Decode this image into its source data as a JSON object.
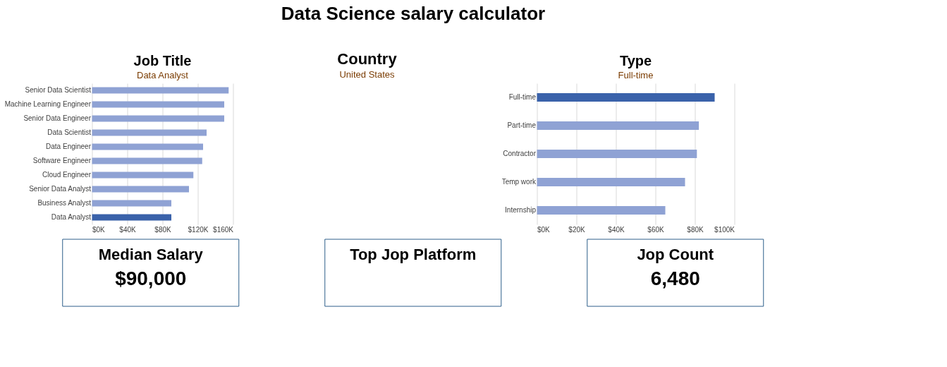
{
  "chart_data": [
    {
      "type": "other",
      "title": "Data Science salary calculator"
    },
    {
      "type": "bar",
      "title": "Job Title",
      "subtitle": "Data Analyst",
      "orientation": "horizontal",
      "grid": "x",
      "categories": [
        "Senior Data Scientist",
        "Machine Learning Engineer",
        "Senior Data Engineer",
        "Data Scientist",
        "Data Engineer",
        "Software Engineer",
        "Cloud Engineer",
        "Senior Data Analyst",
        "Business Analyst",
        "Data Analyst"
      ],
      "values": [
        155000,
        150000,
        150000,
        130000,
        126000,
        125000,
        115000,
        110000,
        90000,
        90000
      ],
      "colors": [
        "#8fa2d4",
        "#8fa2d4",
        "#8fa2d4",
        "#8fa2d4",
        "#8fa2d4",
        "#8fa2d4",
        "#8fa2d4",
        "#8fa2d4",
        "#8fa2d4",
        "#3a62aa"
      ],
      "xlim": [
        0,
        160000
      ],
      "xticks": [
        {
          "value": 0,
          "label": "$0K"
        },
        {
          "value": 40000,
          "label": "$40K"
        },
        {
          "value": 80000,
          "label": "$80K"
        },
        {
          "value": 120000,
          "label": "$120K"
        },
        {
          "value": 160000,
          "label": "$160K"
        }
      ]
    },
    {
      "type": "other",
      "title": "Country",
      "subtitle": "United States"
    },
    {
      "type": "bar",
      "title": "Type",
      "subtitle": "Full-time",
      "orientation": "horizontal",
      "grid": "x",
      "categories": [
        "Full-time",
        "Part-time",
        "Contractor",
        "Temp work",
        "Internship"
      ],
      "values": [
        90000,
        82000,
        81000,
        75000,
        65000
      ],
      "colors": [
        "#3a62aa",
        "#8fa2d4",
        "#8fa2d4",
        "#8fa2d4",
        "#8fa2d4"
      ],
      "xlim": [
        0,
        100000
      ],
      "xticks": [
        {
          "value": 0,
          "label": "$0K"
        },
        {
          "value": 20000,
          "label": "$20K"
        },
        {
          "value": 40000,
          "label": "$40K"
        },
        {
          "value": 60000,
          "label": "$60K"
        },
        {
          "value": 80000,
          "label": "$80K"
        },
        {
          "value": 100000,
          "label": "$100K"
        }
      ]
    },
    {
      "type": "other",
      "title": "Median Salary",
      "annotations": [
        "$90,000"
      ]
    },
    {
      "type": "other",
      "title": "Top Jop Platform"
    },
    {
      "type": "other",
      "title": "Jop Count",
      "annotations": [
        "6,480"
      ]
    }
  ]
}
